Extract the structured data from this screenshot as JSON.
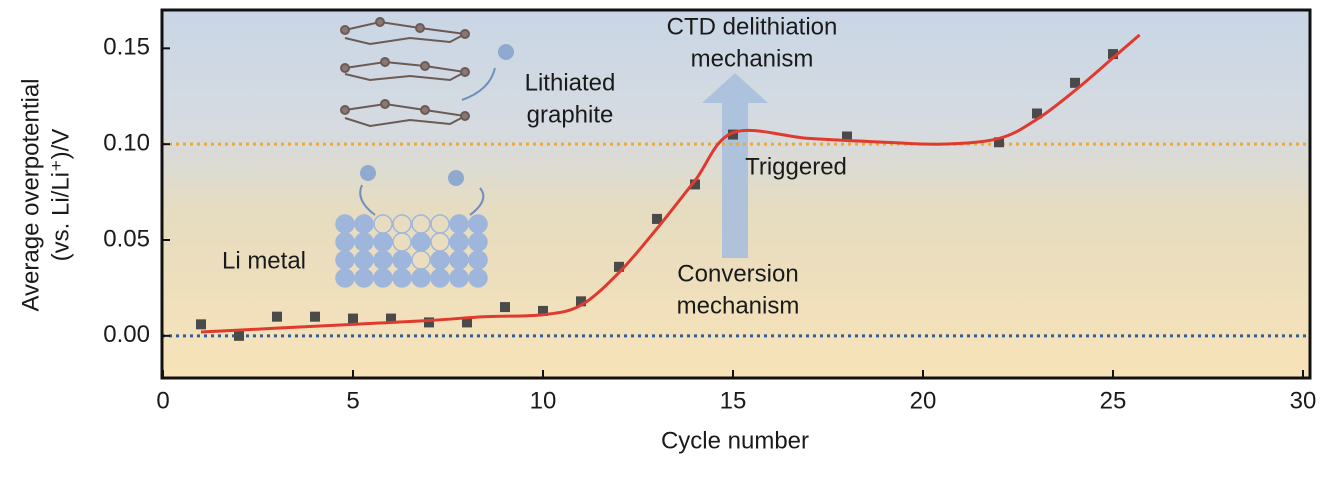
{
  "chart_data": {
    "type": "scatter",
    "xlabel": "Cycle number",
    "ylabel": [
      "Average overpotential",
      "(vs. Li/Li⁺)/V"
    ],
    "xlim": [
      0,
      30
    ],
    "ylim": [
      -0.022,
      0.17
    ],
    "xticks": [
      0,
      5,
      10,
      15,
      20,
      25,
      30
    ],
    "yticks": [
      {
        "value": 0,
        "label": "0.00"
      },
      {
        "value": 0.05,
        "label": "0.05"
      },
      {
        "value": 0.1,
        "label": "0.10"
      },
      {
        "value": 0.15,
        "label": "0.15"
      }
    ],
    "series": [
      {
        "type": "scatter",
        "color": "#4a4a4a",
        "x": [
          1,
          2,
          3,
          4,
          5,
          6,
          7,
          8,
          9,
          10,
          11,
          12,
          13,
          14,
          15,
          18,
          22,
          23,
          24,
          25
        ],
        "values": [
          0.006,
          0.0,
          0.01,
          0.01,
          0.009,
          0.009,
          0.007,
          0.007,
          0.015,
          0.013,
          0.018,
          0.036,
          0.061,
          0.079,
          0.105,
          0.104,
          0.101,
          0.116,
          0.132,
          0.147
        ]
      },
      {
        "type": "line",
        "color": "#e03a2e",
        "x": [
          1,
          3,
          5,
          7,
          8.5,
          10,
          11,
          12,
          13,
          14,
          15,
          17,
          19,
          20.5,
          22,
          23,
          24,
          25,
          25.7
        ],
        "values": [
          0.002,
          0.004,
          0.006,
          0.008,
          0.01,
          0.011,
          0.016,
          0.033,
          0.056,
          0.081,
          0.106,
          0.103,
          0.101,
          0.1,
          0.103,
          0.113,
          0.128,
          0.145,
          0.157
        ]
      }
    ],
    "hlines": [
      {
        "value": 0.1,
        "color": "#f0a830"
      },
      {
        "value": 0,
        "color": "#2f5f9a"
      }
    ],
    "annotations": [
      {
        "text": [
          "CTD delithiation",
          "mechanism"
        ]
      },
      {
        "text": [
          "Lithiated",
          "graphite"
        ]
      },
      {
        "text": [
          "Triggered"
        ]
      },
      {
        "text": [
          "Li metal"
        ]
      },
      {
        "text": [
          "Conversion",
          "mechanism"
        ]
      }
    ]
  }
}
